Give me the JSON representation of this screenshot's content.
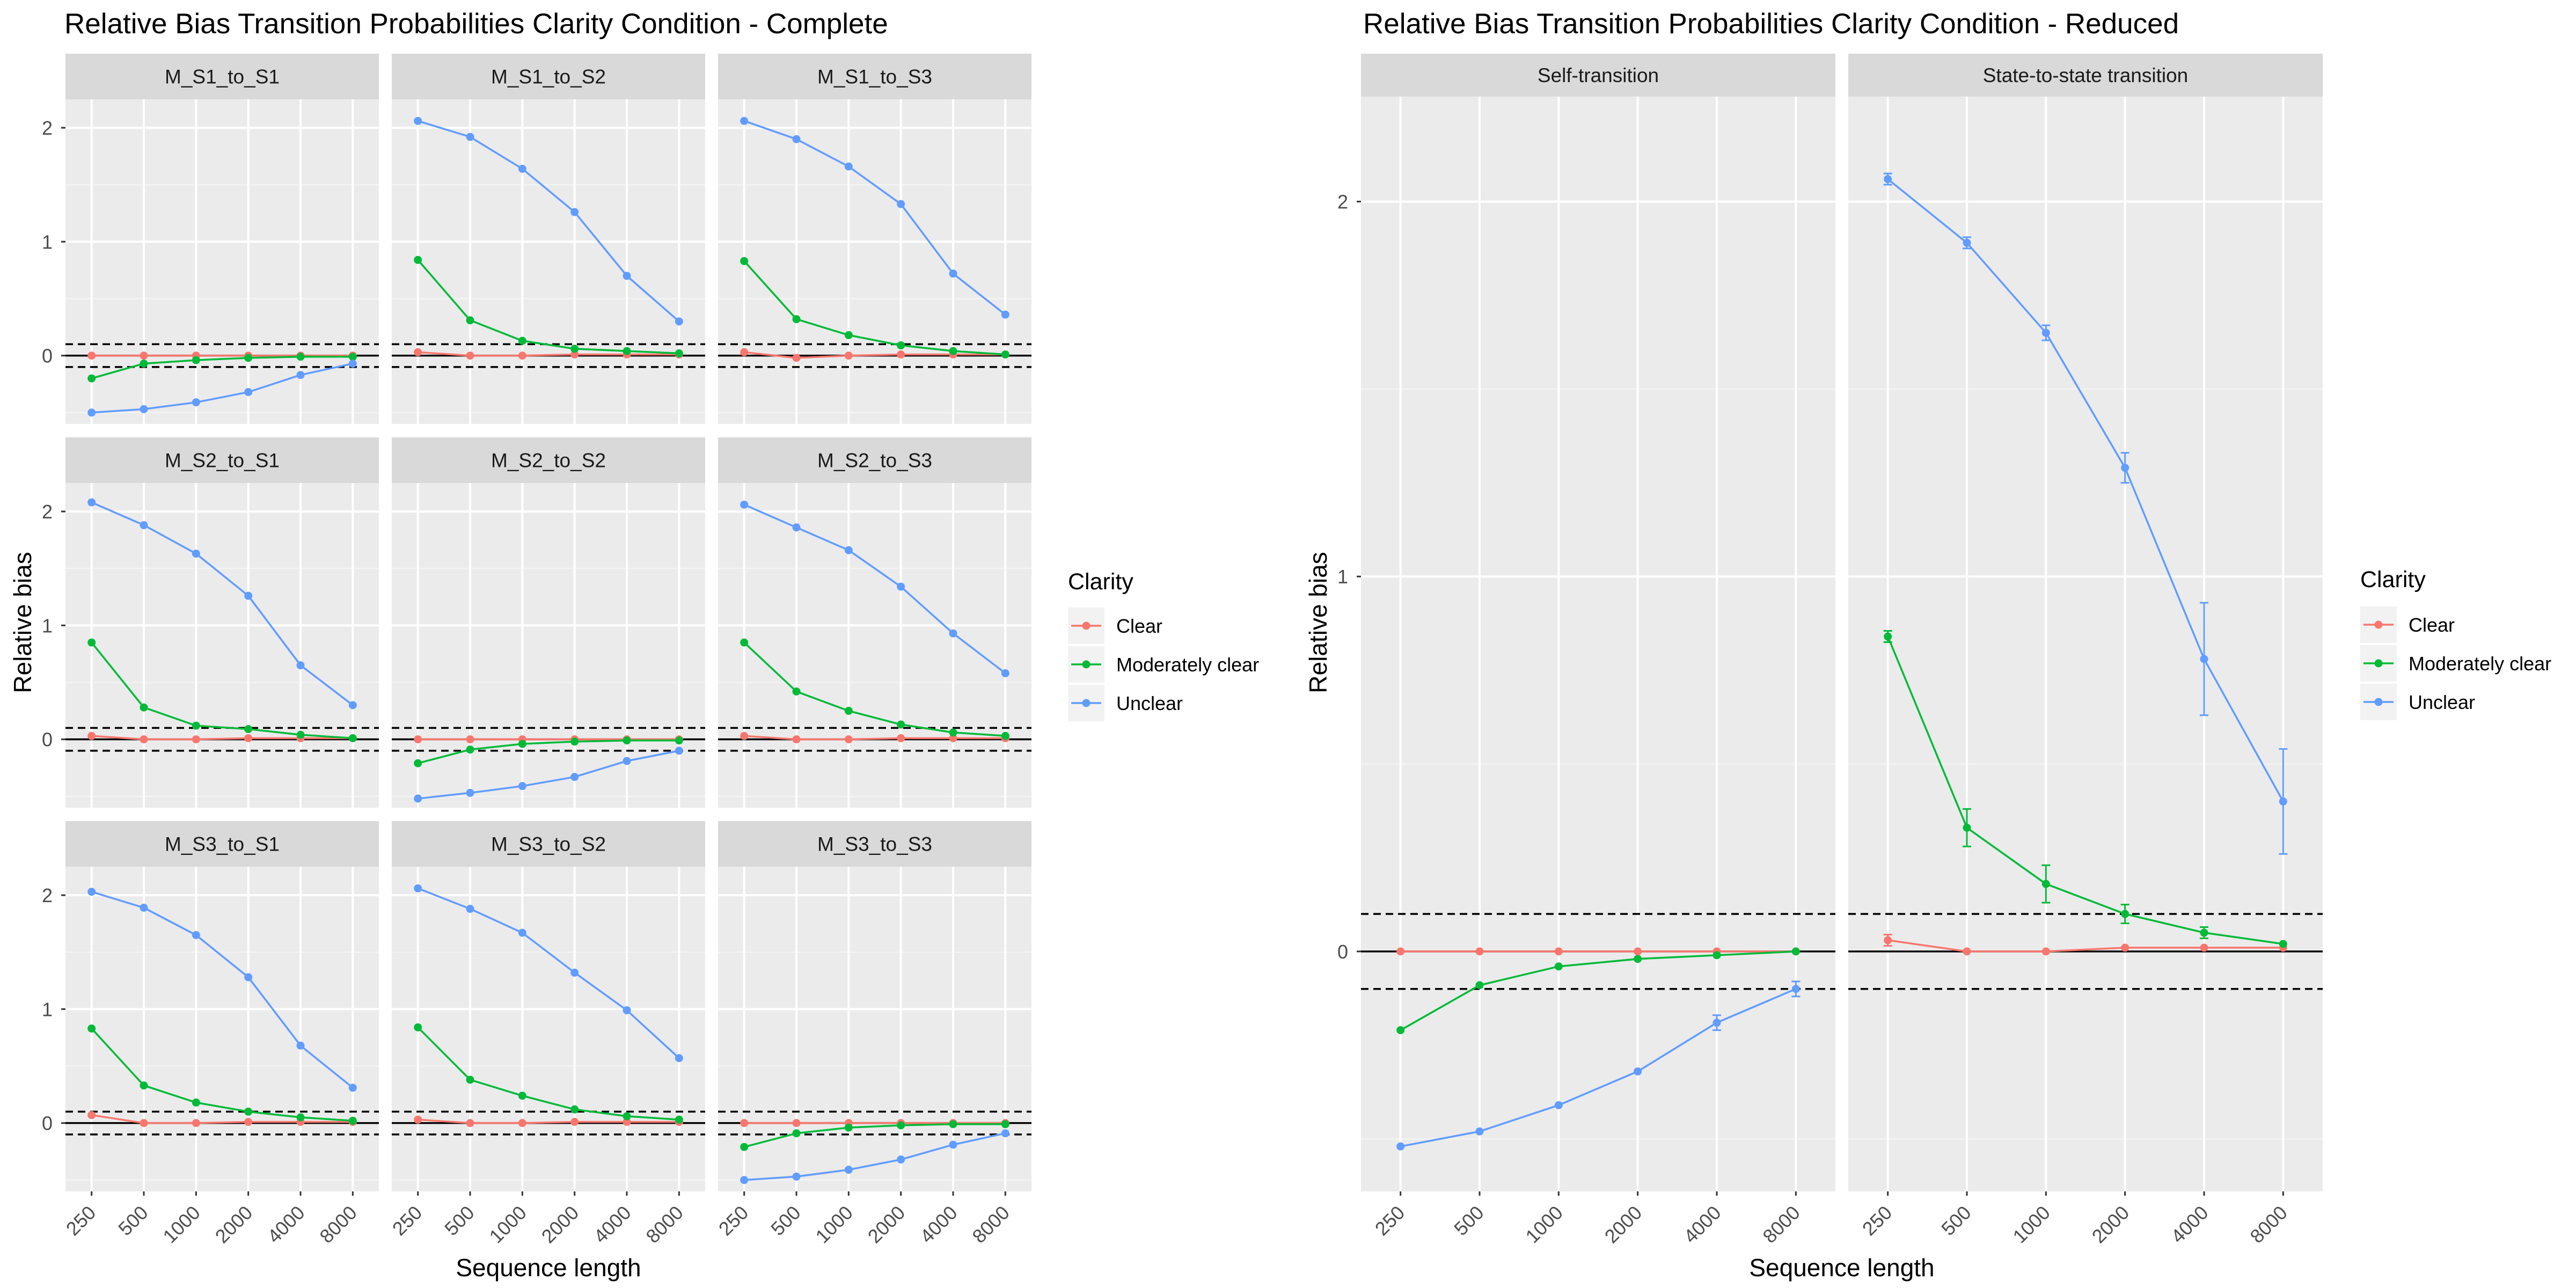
{
  "chart_data": [
    {
      "type": "line",
      "title": "Relative Bias Transition Probabilities Clarity Condition - Complete",
      "xlabel": "Sequence length",
      "ylabel": "Relative bias",
      "x": [
        "250",
        "500",
        "1000",
        "2000",
        "4000",
        "8000"
      ],
      "yticks": [
        "0",
        "1",
        "2"
      ],
      "ylim": [
        -0.6,
        2.25
      ],
      "reference_lines": {
        "solid": [
          0
        ],
        "dashed": [
          0.1,
          -0.1
        ]
      },
      "legend": {
        "title": "Clarity",
        "position": "right"
      },
      "colors": {
        "Clear": "#F8766D",
        "Moderately clear": "#00BA38",
        "Unclear": "#619CFF"
      },
      "facets": [
        {
          "label": "M_S1_to_S1",
          "series": [
            {
              "name": "Clear",
              "values": [
                0.0,
                0.0,
                0.0,
                0.0,
                0.0,
                0.0
              ]
            },
            {
              "name": "Moderately clear",
              "values": [
                -0.2,
                -0.07,
                -0.04,
                -0.02,
                -0.01,
                -0.01
              ]
            },
            {
              "name": "Unclear",
              "values": [
                -0.5,
                -0.47,
                -0.41,
                -0.32,
                -0.17,
                -0.07
              ]
            }
          ]
        },
        {
          "label": "M_S1_to_S2",
          "series": [
            {
              "name": "Clear",
              "values": [
                0.03,
                0.0,
                0.0,
                0.01,
                0.01,
                0.01
              ]
            },
            {
              "name": "Moderately clear",
              "values": [
                0.84,
                0.31,
                0.13,
                0.06,
                0.04,
                0.02
              ]
            },
            {
              "name": "Unclear",
              "values": [
                2.06,
                1.92,
                1.64,
                1.26,
                0.7,
                0.3
              ]
            }
          ]
        },
        {
          "label": "M_S1_to_S3",
          "series": [
            {
              "name": "Clear",
              "values": [
                0.03,
                -0.02,
                0.0,
                0.01,
                0.01,
                0.01
              ]
            },
            {
              "name": "Moderately clear",
              "values": [
                0.83,
                0.32,
                0.18,
                0.09,
                0.04,
                0.01
              ]
            },
            {
              "name": "Unclear",
              "values": [
                2.06,
                1.9,
                1.66,
                1.33,
                0.72,
                0.36
              ]
            }
          ]
        },
        {
          "label": "M_S2_to_S1",
          "series": [
            {
              "name": "Clear",
              "values": [
                0.03,
                0.0,
                0.0,
                0.01,
                0.01,
                0.01
              ]
            },
            {
              "name": "Moderately clear",
              "values": [
                0.85,
                0.28,
                0.12,
                0.09,
                0.04,
                0.01
              ]
            },
            {
              "name": "Unclear",
              "values": [
                2.08,
                1.88,
                1.63,
                1.26,
                0.65,
                0.3
              ]
            }
          ]
        },
        {
          "label": "M_S2_to_S2",
          "series": [
            {
              "name": "Clear",
              "values": [
                0.0,
                0.0,
                0.0,
                0.0,
                0.0,
                0.0
              ]
            },
            {
              "name": "Moderately clear",
              "values": [
                -0.21,
                -0.09,
                -0.04,
                -0.02,
                -0.01,
                -0.01
              ]
            },
            {
              "name": "Unclear",
              "values": [
                -0.52,
                -0.47,
                -0.41,
                -0.33,
                -0.19,
                -0.1
              ]
            }
          ]
        },
        {
          "label": "M_S2_to_S3",
          "series": [
            {
              "name": "Clear",
              "values": [
                0.03,
                0.0,
                0.0,
                0.01,
                0.01,
                0.01
              ]
            },
            {
              "name": "Moderately clear",
              "values": [
                0.85,
                0.42,
                0.25,
                0.13,
                0.06,
                0.03
              ]
            },
            {
              "name": "Unclear",
              "values": [
                2.06,
                1.86,
                1.66,
                1.34,
                0.93,
                0.58
              ]
            }
          ]
        },
        {
          "label": "M_S3_to_S1",
          "series": [
            {
              "name": "Clear",
              "values": [
                0.07,
                0.0,
                0.0,
                0.01,
                0.01,
                0.01
              ]
            },
            {
              "name": "Moderately clear",
              "values": [
                0.83,
                0.33,
                0.18,
                0.1,
                0.05,
                0.02
              ]
            },
            {
              "name": "Unclear",
              "values": [
                2.03,
                1.89,
                1.65,
                1.28,
                0.68,
                0.31
              ]
            }
          ]
        },
        {
          "label": "M_S3_to_S2",
          "series": [
            {
              "name": "Clear",
              "values": [
                0.03,
                0.0,
                0.0,
                0.01,
                0.01,
                0.01
              ]
            },
            {
              "name": "Moderately clear",
              "values": [
                0.84,
                0.38,
                0.24,
                0.12,
                0.06,
                0.03
              ]
            },
            {
              "name": "Unclear",
              "values": [
                2.06,
                1.88,
                1.67,
                1.32,
                0.99,
                0.57
              ]
            }
          ]
        },
        {
          "label": "M_S3_to_S3",
          "series": [
            {
              "name": "Clear",
              "values": [
                0.0,
                0.0,
                0.0,
                0.0,
                0.0,
                0.0
              ]
            },
            {
              "name": "Moderately clear",
              "values": [
                -0.21,
                -0.09,
                -0.04,
                -0.02,
                -0.01,
                -0.01
              ]
            },
            {
              "name": "Unclear",
              "values": [
                -0.5,
                -0.47,
                -0.41,
                -0.32,
                -0.19,
                -0.09
              ]
            }
          ]
        }
      ]
    },
    {
      "type": "line",
      "title": "Relative Bias Transition Probabilities Clarity Condition - Reduced",
      "xlabel": "Sequence length",
      "ylabel": "Relative bias",
      "x": [
        "250",
        "500",
        "1000",
        "2000",
        "4000",
        "8000"
      ],
      "yticks": [
        "0",
        "1",
        "2"
      ],
      "ylim": [
        -0.64,
        2.28
      ],
      "reference_lines": {
        "solid": [
          0
        ],
        "dashed": [
          0.1,
          -0.1
        ]
      },
      "legend": {
        "title": "Clarity",
        "position": "right"
      },
      "colors": {
        "Clear": "#F8766D",
        "Moderately clear": "#00BA38",
        "Unclear": "#619CFF"
      },
      "facets": [
        {
          "label": "Self-transition",
          "series": [
            {
              "name": "Clear",
              "values": [
                0.0,
                0.0,
                0.0,
                0.0,
                0.0,
                0.0
              ]
            },
            {
              "name": "Moderately clear",
              "values": [
                -0.21,
                -0.09,
                -0.04,
                -0.02,
                -0.01,
                0.0
              ]
            },
            {
              "name": "Unclear",
              "values": [
                -0.52,
                -0.48,
                -0.41,
                -0.32,
                -0.19,
                -0.1
              ],
              "error_bars": [
                null,
                null,
                null,
                null,
                0.02,
                0.02
              ]
            }
          ]
        },
        {
          "label": "State-to-state transition",
          "series": [
            {
              "name": "Clear",
              "values": [
                0.03,
                0.0,
                0.0,
                0.01,
                0.01,
                0.01
              ],
              "error_bars": [
                0.015,
                null,
                null,
                null,
                null,
                null
              ]
            },
            {
              "name": "Moderately clear",
              "values": [
                0.84,
                0.33,
                0.18,
                0.1,
                0.05,
                0.02
              ],
              "error_bars": [
                0.015,
                0.05,
                0.05,
                0.025,
                0.015,
                null
              ]
            },
            {
              "name": "Unclear",
              "values": [
                2.06,
                1.89,
                1.65,
                1.29,
                0.78,
                0.4
              ],
              "error_bars": [
                0.015,
                0.015,
                0.02,
                0.04,
                0.15,
                0.14
              ]
            }
          ]
        }
      ]
    }
  ]
}
